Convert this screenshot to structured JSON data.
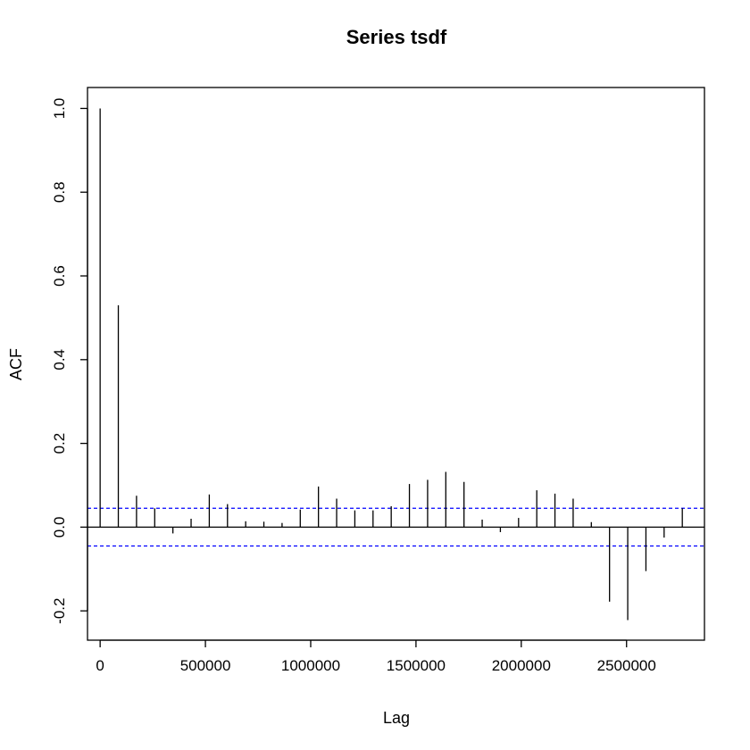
{
  "chart_data": {
    "type": "bar",
    "title": "Series  tsdf",
    "xlabel": "Lag",
    "ylabel": "ACF",
    "xlim": [
      -60000,
      2870000
    ],
    "ylim": [
      -0.27,
      1.05
    ],
    "x_ticks": [
      0,
      500000,
      1000000,
      1500000,
      2000000,
      2500000
    ],
    "x_tick_labels": [
      "0",
      "500000",
      "1000000",
      "1500000",
      "2000000",
      "2500000"
    ],
    "y_ticks": [
      -0.2,
      0.0,
      0.2,
      0.4,
      0.6,
      0.8,
      1.0
    ],
    "y_tick_labels": [
      "-0.2",
      "0.0",
      "0.2",
      "0.4",
      "0.6",
      "0.8",
      "1.0"
    ],
    "confidence_bound": 0.045,
    "confidence_color": "#0000ff",
    "line_color": "#000000",
    "grid": false,
    "lags": [
      0,
      86400,
      172800,
      259200,
      345600,
      432000,
      518400,
      604800,
      691200,
      777600,
      864000,
      950400,
      1036800,
      1123200,
      1209600,
      1296000,
      1382400,
      1468800,
      1555200,
      1641600,
      1728000,
      1814400,
      1900800,
      1987200,
      2073600,
      2160000,
      2246400,
      2332800,
      2419200,
      2505600,
      2592000,
      2678400,
      2764800
    ],
    "acf": [
      1.0,
      0.53,
      0.075,
      0.045,
      -0.015,
      0.02,
      0.078,
      0.055,
      0.014,
      0.013,
      0.01,
      0.042,
      0.097,
      0.068,
      0.04,
      0.04,
      0.05,
      0.103,
      0.113,
      0.132,
      0.108,
      0.018,
      -0.012,
      0.022,
      0.088,
      0.08,
      0.068,
      0.012,
      -0.178,
      -0.222,
      -0.105,
      -0.025,
      0.045
    ]
  }
}
